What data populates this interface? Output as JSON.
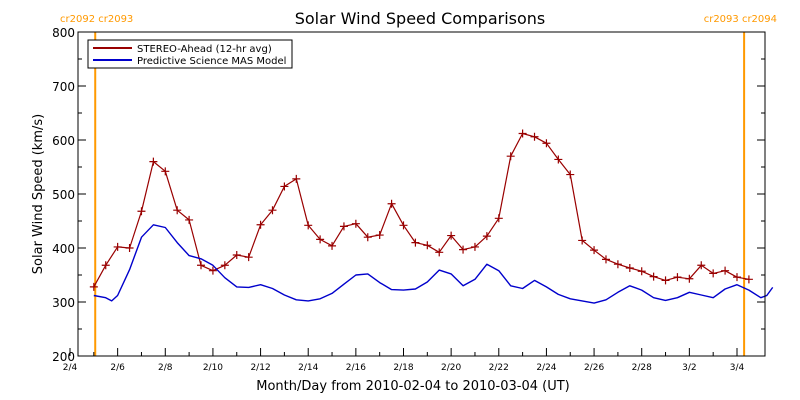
{
  "chart_data": {
    "type": "line",
    "title": "Solar Wind Speed Comparisons",
    "xlabel": "Month/Day from 2010-02-04 to 2010-03-04 (UT)",
    "ylabel": "Solar Wind Speed (km/s)",
    "xlim": [
      "2010-02-04",
      "2010-03-04"
    ],
    "ylim": [
      200,
      800
    ],
    "x_ticks": [
      "2/4",
      "2/6",
      "2/8",
      "2/10",
      "2/12",
      "2/14",
      "2/16",
      "2/18",
      "2/20",
      "2/22",
      "2/24",
      "2/26",
      "2/28",
      "3/2",
      "3/4"
    ],
    "y_ticks": [
      200,
      300,
      400,
      500,
      600,
      700,
      800
    ],
    "grid": false,
    "legend": "top-left",
    "carrington_markers": [
      {
        "label": "cr2092 cr2093",
        "time": "2010-02-05 01:25",
        "color": "#ff9900"
      },
      {
        "label": "cr2093 cr2094",
        "time": "2010-03-04 07:10",
        "color": "#ff9900"
      }
    ],
    "series": [
      {
        "name": "STEREO-Ahead (12-hr avg)",
        "color": "#990000",
        "marker": "+",
        "points": [
          [
            "2010-02-05 00:00",
            328
          ],
          [
            "2010-02-05 12:00",
            368
          ],
          [
            "2010-02-06 00:00",
            402
          ],
          [
            "2010-02-06 12:00",
            400
          ],
          [
            "2010-02-07 00:00",
            468
          ],
          [
            "2010-02-07 12:00",
            560
          ],
          [
            "2010-02-08 00:00",
            542
          ],
          [
            "2010-02-08 12:00",
            470
          ],
          [
            "2010-02-09 00:00",
            452
          ],
          [
            "2010-02-09 12:00",
            368
          ],
          [
            "2010-02-10 00:00",
            358
          ],
          [
            "2010-02-10 12:00",
            368
          ],
          [
            "2010-02-11 00:00",
            387
          ],
          [
            "2010-02-11 12:00",
            383
          ],
          [
            "2010-02-12 00:00",
            443
          ],
          [
            "2010-02-12 12:00",
            470
          ],
          [
            "2010-02-13 00:00",
            514
          ],
          [
            "2010-02-13 12:00",
            528
          ],
          [
            "2010-02-14 00:00",
            442
          ],
          [
            "2010-02-14 12:00",
            416
          ],
          [
            "2010-02-15 00:00",
            404
          ],
          [
            "2010-02-15 12:00",
            440
          ],
          [
            "2010-02-16 00:00",
            445
          ],
          [
            "2010-02-16 12:00",
            420
          ],
          [
            "2010-02-17 00:00",
            424
          ],
          [
            "2010-02-17 12:00",
            482
          ],
          [
            "2010-02-18 00:00",
            442
          ],
          [
            "2010-02-18 12:00",
            410
          ],
          [
            "2010-02-19 00:00",
            405
          ],
          [
            "2010-02-19 12:00",
            392
          ],
          [
            "2010-02-20 00:00",
            423
          ],
          [
            "2010-02-20 12:00",
            397
          ],
          [
            "2010-02-21 00:00",
            402
          ],
          [
            "2010-02-21 12:00",
            422
          ],
          [
            "2010-02-22 00:00",
            455
          ],
          [
            "2010-02-22 12:00",
            570
          ],
          [
            "2010-02-23 00:00",
            612
          ],
          [
            "2010-02-23 12:00",
            606
          ],
          [
            "2010-02-24 00:00",
            594
          ],
          [
            "2010-02-24 12:00",
            564
          ],
          [
            "2010-02-25 00:00",
            536
          ],
          [
            "2010-02-25 12:00",
            414
          ],
          [
            "2010-02-26 00:00",
            396
          ],
          [
            "2010-02-26 12:00",
            379
          ],
          [
            "2010-02-27 00:00",
            370
          ],
          [
            "2010-02-27 12:00",
            363
          ],
          [
            "2010-02-28 00:00",
            357
          ],
          [
            "2010-02-28 12:00",
            347
          ],
          [
            "2010-03-01 00:00",
            340
          ],
          [
            "2010-03-01 12:00",
            346
          ],
          [
            "2010-03-02 00:00",
            343
          ],
          [
            "2010-03-02 12:00",
            368
          ],
          [
            "2010-03-03 00:00",
            353
          ],
          [
            "2010-03-03 12:00",
            358
          ],
          [
            "2010-03-04 00:00",
            346
          ],
          [
            "2010-03-04 12:00",
            342
          ]
        ]
      },
      {
        "name": "Predictive Science MAS Model",
        "color": "#0000cc",
        "marker": "none",
        "points": [
          [
            "2010-02-05 00:00",
            312
          ],
          [
            "2010-02-05 12:00",
            308
          ],
          [
            "2010-02-05 18:00",
            302
          ],
          [
            "2010-02-06 00:00",
            312
          ],
          [
            "2010-02-06 12:00",
            360
          ],
          [
            "2010-02-07 00:00",
            420
          ],
          [
            "2010-02-07 12:00",
            443
          ],
          [
            "2010-02-08 00:00",
            438
          ],
          [
            "2010-02-08 12:00",
            410
          ],
          [
            "2010-02-09 00:00",
            386
          ],
          [
            "2010-02-09 12:00",
            380
          ],
          [
            "2010-02-10 00:00",
            368
          ],
          [
            "2010-02-10 12:00",
            345
          ],
          [
            "2010-02-11 00:00",
            328
          ],
          [
            "2010-02-11 12:00",
            327
          ],
          [
            "2010-02-12 00:00",
            332
          ],
          [
            "2010-02-12 12:00",
            325
          ],
          [
            "2010-02-13 00:00",
            313
          ],
          [
            "2010-02-13 12:00",
            304
          ],
          [
            "2010-02-14 00:00",
            302
          ],
          [
            "2010-02-14 12:00",
            306
          ],
          [
            "2010-02-15 00:00",
            316
          ],
          [
            "2010-02-15 12:00",
            333
          ],
          [
            "2010-02-16 00:00",
            350
          ],
          [
            "2010-02-16 12:00",
            352
          ],
          [
            "2010-02-17 00:00",
            336
          ],
          [
            "2010-02-17 12:00",
            323
          ],
          [
            "2010-02-18 00:00",
            322
          ],
          [
            "2010-02-18 12:00",
            324
          ],
          [
            "2010-02-19 00:00",
            337
          ],
          [
            "2010-02-19 12:00",
            359
          ],
          [
            "2010-02-20 00:00",
            352
          ],
          [
            "2010-02-20 12:00",
            330
          ],
          [
            "2010-02-21 00:00",
            342
          ],
          [
            "2010-02-21 12:00",
            370
          ],
          [
            "2010-02-22 00:00",
            358
          ],
          [
            "2010-02-22 12:00",
            330
          ],
          [
            "2010-02-23 00:00",
            325
          ],
          [
            "2010-02-23 12:00",
            340
          ],
          [
            "2010-02-24 00:00",
            328
          ],
          [
            "2010-02-24 12:00",
            314
          ],
          [
            "2010-02-25 00:00",
            306
          ],
          [
            "2010-02-25 12:00",
            302
          ],
          [
            "2010-02-26 00:00",
            298
          ],
          [
            "2010-02-26 12:00",
            304
          ],
          [
            "2010-02-27 00:00",
            318
          ],
          [
            "2010-02-27 12:00",
            330
          ],
          [
            "2010-02-28 00:00",
            322
          ],
          [
            "2010-02-28 12:00",
            308
          ],
          [
            "2010-03-01 00:00",
            303
          ],
          [
            "2010-03-01 12:00",
            308
          ],
          [
            "2010-03-02 00:00",
            318
          ],
          [
            "2010-03-02 12:00",
            313
          ],
          [
            "2010-03-03 00:00",
            308
          ],
          [
            "2010-03-03 12:00",
            324
          ],
          [
            "2010-03-04 00:00",
            332
          ],
          [
            "2010-03-04 12:00",
            322
          ],
          [
            "2010-03-05 00:00",
            308
          ],
          [
            "2010-03-05 06:00",
            312
          ],
          [
            "2010-03-05 12:00",
            327
          ]
        ]
      }
    ]
  }
}
